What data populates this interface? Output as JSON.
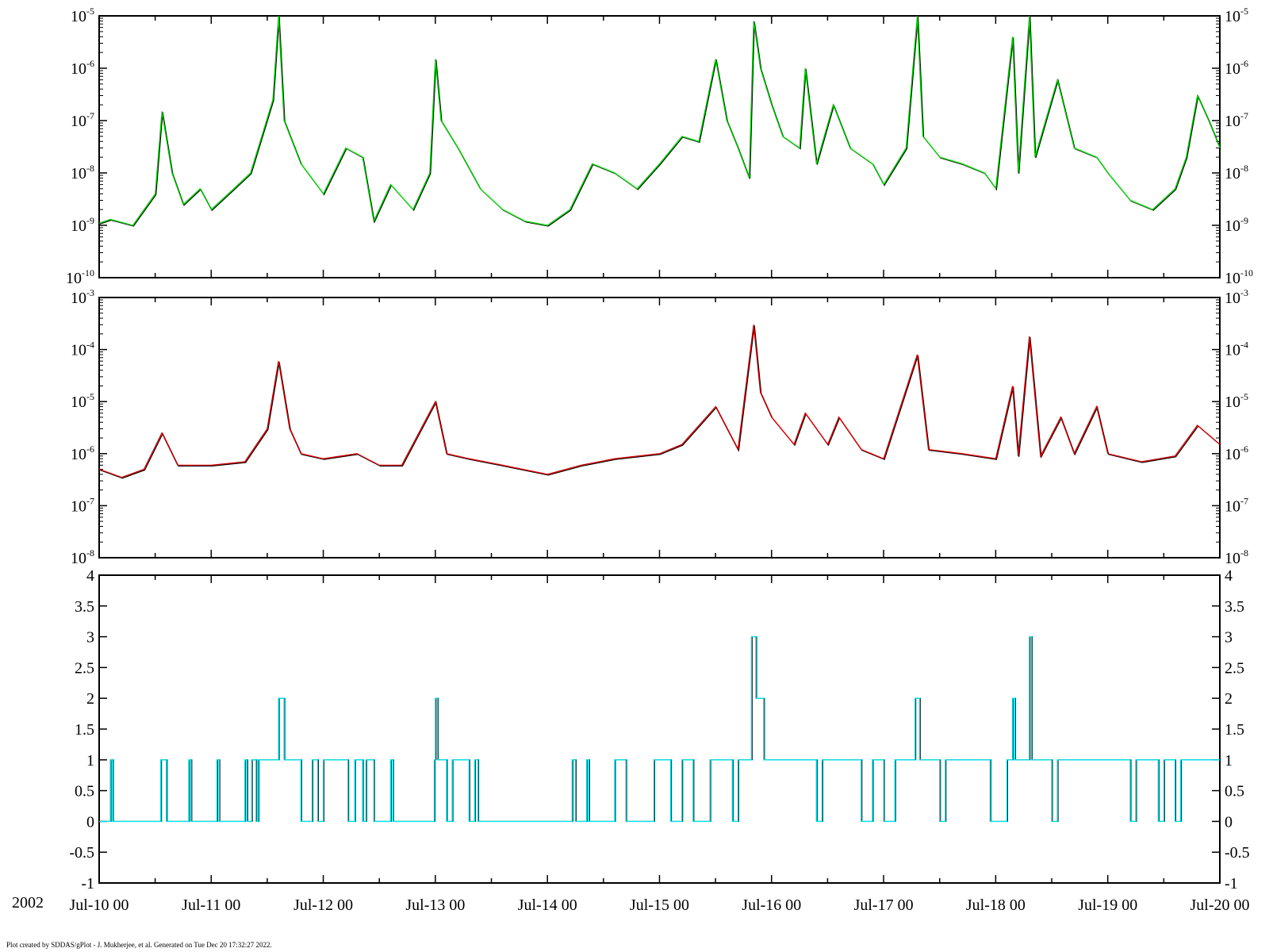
{
  "year_label": "2002",
  "footer": "Plot created by SDDAS/gPlot - J. Mukherjee, et al.  Generated on Tue Dec 20 17:32:27 2022.",
  "colors": {
    "panel1": "#00dd00",
    "panel2": "#dd0000",
    "panel3": "#00e5ee",
    "shadow": "#000000"
  },
  "x_ticks": [
    "Jul-10 00",
    "Jul-11 00",
    "Jul-12 00",
    "Jul-13 00",
    "Jul-14 00",
    "Jul-15 00",
    "Jul-16 00",
    "Jul-17 00",
    "Jul-18 00",
    "Jul-19 00",
    "Jul-20 00"
  ],
  "chart_data": [
    {
      "type": "line",
      "scale": "log",
      "ylim": [
        1e-10,
        1e-05
      ],
      "xlim": [
        0,
        10
      ],
      "x_unit": "days from Jul-10 00",
      "y_tick_exponents": [
        "-10",
        "-9",
        "-8",
        "-7",
        "-6",
        "-5"
      ],
      "points": [
        [
          0,
          1.1e-09
        ],
        [
          0.1,
          1.3e-09
        ],
        [
          0.3,
          1e-09
        ],
        [
          0.5,
          4e-09
        ],
        [
          0.56,
          1.5e-07
        ],
        [
          0.65,
          1e-08
        ],
        [
          0.75,
          2.5e-09
        ],
        [
          0.9,
          5e-09
        ],
        [
          1.0,
          2e-09
        ],
        [
          1.2,
          5e-09
        ],
        [
          1.35,
          1e-08
        ],
        [
          1.45,
          5e-08
        ],
        [
          1.55,
          2.5e-07
        ],
        [
          1.6,
          1e-05
        ],
        [
          1.65,
          1e-07
        ],
        [
          1.8,
          1.5e-08
        ],
        [
          2.0,
          4e-09
        ],
        [
          2.2,
          3e-08
        ],
        [
          2.35,
          2e-08
        ],
        [
          2.45,
          1.2e-09
        ],
        [
          2.6,
          6e-09
        ],
        [
          2.8,
          2e-09
        ],
        [
          2.95,
          1e-08
        ],
        [
          3.0,
          1.5e-06
        ],
        [
          3.05,
          1e-07
        ],
        [
          3.2,
          3e-08
        ],
        [
          3.4,
          5e-09
        ],
        [
          3.6,
          2e-09
        ],
        [
          3.8,
          1.2e-09
        ],
        [
          4.0,
          1e-09
        ],
        [
          4.2,
          2e-09
        ],
        [
          4.4,
          1.5e-08
        ],
        [
          4.6,
          1e-08
        ],
        [
          4.8,
          5e-09
        ],
        [
          5.0,
          1.5e-08
        ],
        [
          5.2,
          5e-08
        ],
        [
          5.35,
          4e-08
        ],
        [
          5.5,
          1.5e-06
        ],
        [
          5.6,
          1e-07
        ],
        [
          5.7,
          3e-08
        ],
        [
          5.8,
          8e-09
        ],
        [
          5.84,
          8e-06
        ],
        [
          5.9,
          1e-06
        ],
        [
          6.0,
          2e-07
        ],
        [
          6.1,
          5e-08
        ],
        [
          6.25,
          3e-08
        ],
        [
          6.3,
          1e-06
        ],
        [
          6.4,
          1.5e-08
        ],
        [
          6.55,
          2e-07
        ],
        [
          6.7,
          3e-08
        ],
        [
          6.9,
          1.5e-08
        ],
        [
          7.0,
          6e-09
        ],
        [
          7.2,
          3e-08
        ],
        [
          7.3,
          1e-05
        ],
        [
          7.35,
          5e-08
        ],
        [
          7.5,
          2e-08
        ],
        [
          7.7,
          1.5e-08
        ],
        [
          7.9,
          1e-08
        ],
        [
          8.0,
          5e-09
        ],
        [
          8.15,
          4e-06
        ],
        [
          8.2,
          1e-08
        ],
        [
          8.3,
          1e-05
        ],
        [
          8.35,
          2e-08
        ],
        [
          8.55,
          6e-07
        ],
        [
          8.7,
          3e-08
        ],
        [
          8.9,
          2e-08
        ],
        [
          9.0,
          1e-08
        ],
        [
          9.2,
          3e-09
        ],
        [
          9.4,
          2e-09
        ],
        [
          9.6,
          5e-09
        ],
        [
          9.7,
          2e-08
        ],
        [
          9.8,
          3e-07
        ],
        [
          9.9,
          1e-07
        ],
        [
          10.0,
          3e-08
        ]
      ]
    },
    {
      "type": "line",
      "scale": "log",
      "ylim": [
        1e-08,
        0.001
      ],
      "xlim": [
        0,
        10
      ],
      "x_unit": "days from Jul-10 00",
      "y_tick_exponents": [
        "-8",
        "-7",
        "-6",
        "-5",
        "-4",
        "-3"
      ],
      "points": [
        [
          0,
          5e-07
        ],
        [
          0.2,
          3.5e-07
        ],
        [
          0.4,
          5e-07
        ],
        [
          0.56,
          2.5e-06
        ],
        [
          0.7,
          6e-07
        ],
        [
          1.0,
          6e-07
        ],
        [
          1.3,
          7e-07
        ],
        [
          1.5,
          3e-06
        ],
        [
          1.6,
          6e-05
        ],
        [
          1.7,
          3e-06
        ],
        [
          1.8,
          1e-06
        ],
        [
          2.0,
          8e-07
        ],
        [
          2.3,
          1e-06
        ],
        [
          2.5,
          6e-07
        ],
        [
          2.7,
          6e-07
        ],
        [
          3.0,
          1e-05
        ],
        [
          3.1,
          1e-06
        ],
        [
          3.3,
          8e-07
        ],
        [
          3.6,
          6e-07
        ],
        [
          4.0,
          4e-07
        ],
        [
          4.3,
          6e-07
        ],
        [
          4.6,
          8e-07
        ],
        [
          5.0,
          1e-06
        ],
        [
          5.2,
          1.5e-06
        ],
        [
          5.5,
          8e-06
        ],
        [
          5.7,
          1.2e-06
        ],
        [
          5.84,
          0.0003
        ],
        [
          5.9,
          1.5e-05
        ],
        [
          6.0,
          5e-06
        ],
        [
          6.2,
          1.5e-06
        ],
        [
          6.3,
          6e-06
        ],
        [
          6.5,
          1.5e-06
        ],
        [
          6.6,
          5e-06
        ],
        [
          6.8,
          1.2e-06
        ],
        [
          7.0,
          8e-07
        ],
        [
          7.3,
          8e-05
        ],
        [
          7.4,
          1.2e-06
        ],
        [
          7.7,
          1e-06
        ],
        [
          8.0,
          8e-07
        ],
        [
          8.15,
          2e-05
        ],
        [
          8.2,
          9e-07
        ],
        [
          8.3,
          0.00018
        ],
        [
          8.4,
          9e-07
        ],
        [
          8.58,
          5e-06
        ],
        [
          8.7,
          1e-06
        ],
        [
          8.9,
          8e-06
        ],
        [
          9.0,
          1e-06
        ],
        [
          9.3,
          7e-07
        ],
        [
          9.6,
          9e-07
        ],
        [
          9.8,
          3.5e-06
        ],
        [
          10.0,
          1.5e-06
        ]
      ]
    },
    {
      "type": "line",
      "scale": "linear",
      "ylim": [
        -1,
        4
      ],
      "xlim": [
        0,
        10
      ],
      "x_unit": "days from Jul-10 00",
      "y_ticks": [
        "-1",
        "-0.5",
        "0",
        "0.5",
        "1",
        "1.5",
        "2",
        "2.5",
        "3",
        "3.5",
        "4"
      ],
      "steps": [
        [
          0,
          0
        ],
        [
          0.1,
          1
        ],
        [
          0.12,
          0
        ],
        [
          0.55,
          1
        ],
        [
          0.6,
          0
        ],
        [
          0.8,
          1
        ],
        [
          0.82,
          0
        ],
        [
          1.05,
          1
        ],
        [
          1.07,
          0
        ],
        [
          1.3,
          1
        ],
        [
          1.32,
          0
        ],
        [
          1.36,
          1
        ],
        [
          1.4,
          0
        ],
        [
          1.42,
          1
        ],
        [
          1.6,
          2
        ],
        [
          1.65,
          1
        ],
        [
          1.8,
          0
        ],
        [
          1.9,
          1
        ],
        [
          1.95,
          0
        ],
        [
          2.0,
          1
        ],
        [
          2.2,
          1
        ],
        [
          2.22,
          0
        ],
        [
          2.28,
          1
        ],
        [
          2.35,
          0
        ],
        [
          2.38,
          1
        ],
        [
          2.45,
          0
        ],
        [
          2.6,
          1
        ],
        [
          2.62,
          0
        ],
        [
          2.99,
          1
        ],
        [
          3.0,
          2
        ],
        [
          3.02,
          1
        ],
        [
          3.1,
          0
        ],
        [
          3.15,
          1
        ],
        [
          3.3,
          0
        ],
        [
          3.35,
          1
        ],
        [
          3.38,
          0
        ],
        [
          4.22,
          1
        ],
        [
          4.25,
          0
        ],
        [
          4.35,
          1
        ],
        [
          4.37,
          0
        ],
        [
          4.6,
          1
        ],
        [
          4.7,
          0
        ],
        [
          4.95,
          1
        ],
        [
          5.1,
          0
        ],
        [
          5.2,
          1
        ],
        [
          5.3,
          0
        ],
        [
          5.45,
          1
        ],
        [
          5.65,
          0
        ],
        [
          5.7,
          1
        ],
        [
          5.82,
          3
        ],
        [
          5.86,
          2
        ],
        [
          5.93,
          1
        ],
        [
          6.4,
          0
        ],
        [
          6.45,
          1
        ],
        [
          6.8,
          0
        ],
        [
          6.9,
          1
        ],
        [
          7.0,
          0
        ],
        [
          7.1,
          1
        ],
        [
          7.28,
          2
        ],
        [
          7.32,
          1
        ],
        [
          7.5,
          0
        ],
        [
          7.55,
          1
        ],
        [
          7.95,
          0
        ],
        [
          8.1,
          1
        ],
        [
          8.15,
          2
        ],
        [
          8.17,
          1
        ],
        [
          8.3,
          3
        ],
        [
          8.32,
          1
        ],
        [
          8.5,
          0
        ],
        [
          8.55,
          1
        ],
        [
          9.0,
          1
        ],
        [
          9.2,
          0
        ],
        [
          9.25,
          1
        ],
        [
          9.45,
          0
        ],
        [
          9.5,
          1
        ],
        [
          9.6,
          0
        ],
        [
          9.65,
          1
        ],
        [
          10.0,
          1
        ]
      ]
    }
  ]
}
